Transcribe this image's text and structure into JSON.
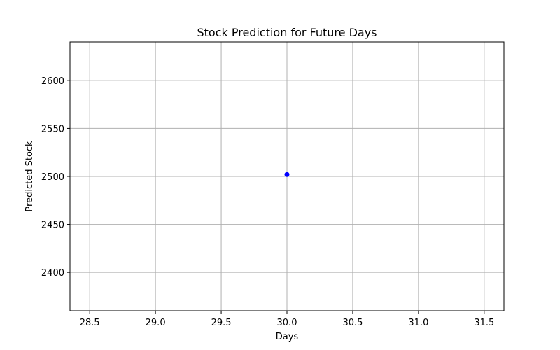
{
  "chart_data": {
    "type": "scatter",
    "title": "Stock Prediction for Future Days",
    "xlabel": "Days",
    "ylabel": "Predicted Stock",
    "xlim": [
      28.35,
      31.65
    ],
    "ylim": [
      2360,
      2640
    ],
    "xticks": [
      28.5,
      29.0,
      29.5,
      30.0,
      30.5,
      31.0,
      31.5
    ],
    "xtick_labels": [
      "28.5",
      "29.0",
      "29.5",
      "30.0",
      "30.5",
      "31.0",
      "31.5"
    ],
    "yticks": [
      2400,
      2450,
      2500,
      2550,
      2600
    ],
    "ytick_labels": [
      "2400",
      "2450",
      "2500",
      "2550",
      "2600"
    ],
    "grid": true,
    "series": [
      {
        "points": [
          {
            "x": 30.0,
            "y": 2502
          }
        ],
        "color": "#0000ff"
      }
    ]
  }
}
